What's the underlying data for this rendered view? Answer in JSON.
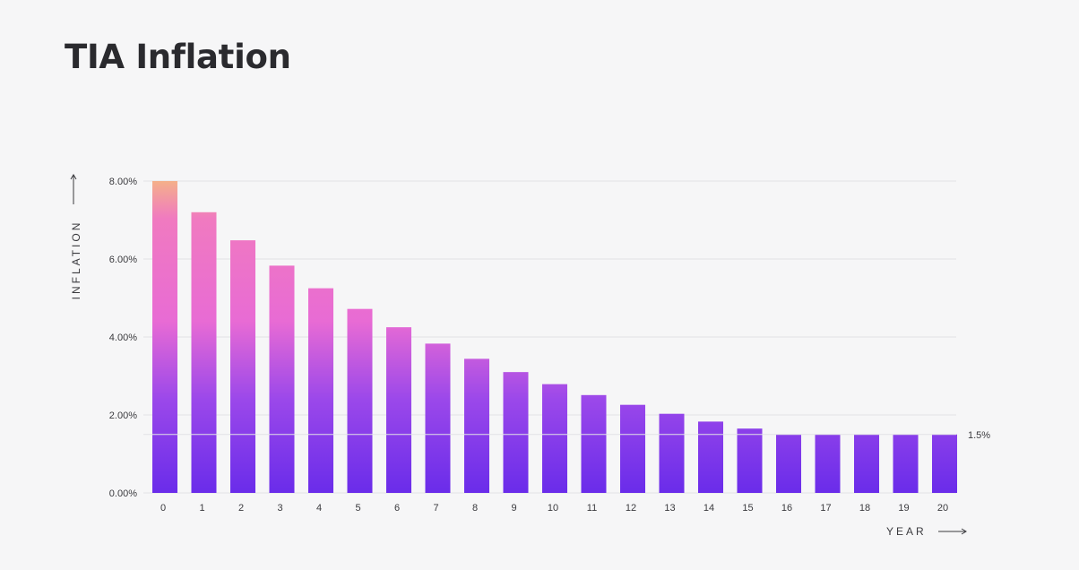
{
  "chart_data": {
    "type": "bar",
    "title": "TIA Inflation",
    "xlabel": "YEAR",
    "ylabel": "INFLATION",
    "categories": [
      "0",
      "1",
      "2",
      "3",
      "4",
      "5",
      "6",
      "7",
      "8",
      "9",
      "10",
      "11",
      "12",
      "13",
      "14",
      "15",
      "16",
      "17",
      "18",
      "19",
      "20"
    ],
    "values": [
      8.0,
      7.2,
      6.48,
      5.83,
      5.25,
      4.72,
      4.25,
      3.83,
      3.44,
      3.1,
      2.79,
      2.51,
      2.26,
      2.03,
      1.83,
      1.65,
      1.5,
      1.5,
      1.5,
      1.5,
      1.5
    ],
    "ylim": [
      0,
      8
    ],
    "yticks": [
      0,
      2,
      4,
      6,
      8
    ],
    "ytick_labels": [
      "0.00%",
      "2.00%",
      "4.00%",
      "6.00%",
      "8.00%"
    ],
    "annotation": {
      "label": "1.5%",
      "value": 1.5
    },
    "grid": true,
    "colors": {
      "top": "#f0a98a",
      "mid": "#ee6fd0",
      "bottom": "#6a2fea",
      "text": "#2a2a2e"
    }
  }
}
